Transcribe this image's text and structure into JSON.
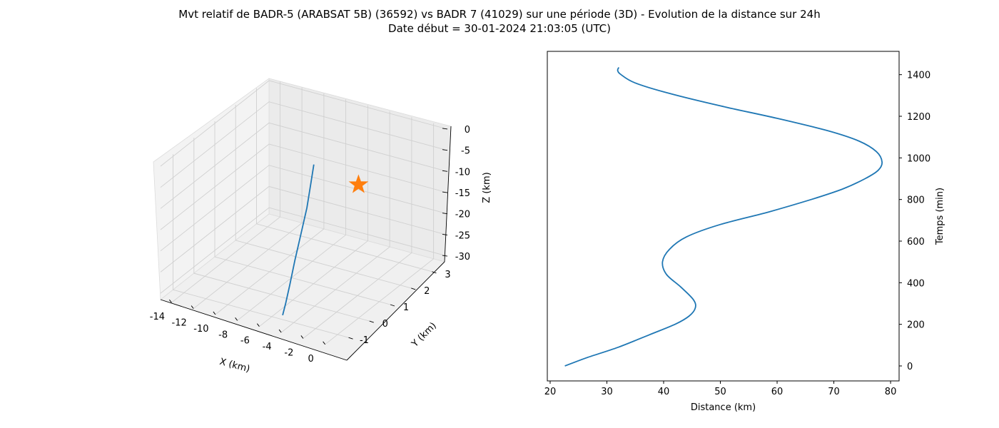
{
  "title_line1": "Mvt relatif de BADR-5 (ARABSAT 5B) (36592) vs BADR 7 (41029) sur une période (3D) - Evolution de la distance sur 24h",
  "title_line2": "Date début = 30-01-2024 21:03:05 (UTC)",
  "colors": {
    "line": "#1f77b4",
    "marker": "#ff7f0e",
    "pane": "#f2f2f2",
    "grid": "#d0d0d0"
  },
  "chart_data": [
    {
      "type": "line3d",
      "xlabel": "X (km)",
      "ylabel": "Y (km)",
      "zlabel": "Z (km)",
      "xlim": [
        -15,
        1
      ],
      "ylim": [
        -1.6,
        3.6
      ],
      "zlim": [
        -31.5,
        0.5
      ],
      "xticks": [
        -14,
        -12,
        -10,
        -8,
        -6,
        -4,
        -2,
        0
      ],
      "yticks": [
        -1,
        0,
        1,
        2,
        3
      ],
      "zticks": [
        0,
        -5,
        -10,
        -15,
        -20,
        -25,
        -30
      ],
      "grid": true,
      "series": [
        {
          "x": [
            -5.2,
            -5.3,
            -5.5,
            -5.8,
            -6.2,
            -6.6,
            -7.0,
            -7.3
          ],
          "y": [
            -0.9,
            -0.7,
            -0.4,
            0.0,
            0.5,
            1.0,
            1.4,
            1.7
          ],
          "z": [
            -31.0,
            -29.0,
            -26.0,
            -22.0,
            -18.0,
            -14.0,
            -10.0,
            -7.0
          ]
        }
      ],
      "marker": {
        "symbol": "star",
        "x": 0,
        "y": 0,
        "z": 0
      }
    },
    {
      "type": "line",
      "xlabel": "Distance (km)",
      "ylabel": "Temps (min)",
      "xlim": [
        19.5,
        81.5
      ],
      "ylim": [
        -72,
        1512
      ],
      "xticks": [
        20,
        30,
        40,
        50,
        60,
        70,
        80
      ],
      "yticks": [
        0,
        200,
        400,
        600,
        800,
        1000,
        1200,
        1400
      ],
      "series": [
        {
          "x": [
            22.6,
            26.5,
            32.0,
            37.5,
            42.0,
            44.5,
            45.6,
            45.2,
            43.0,
            40.5,
            39.8,
            41.0,
            44.0,
            50.0,
            58.5,
            66.0,
            71.5,
            75.5,
            77.8,
            78.5,
            77.5,
            74.5,
            69.0,
            60.0,
            50.0,
            41.0,
            35.0,
            32.5,
            31.9,
            32.1
          ],
          "y": [
            0,
            40,
            90,
            150,
            200,
            240,
            280,
            320,
            380,
            440,
            500,
            560,
            620,
            680,
            740,
            800,
            850,
            900,
            940,
            980,
            1030,
            1080,
            1130,
            1190,
            1250,
            1310,
            1360,
            1400,
            1420,
            1435
          ]
        }
      ]
    }
  ]
}
